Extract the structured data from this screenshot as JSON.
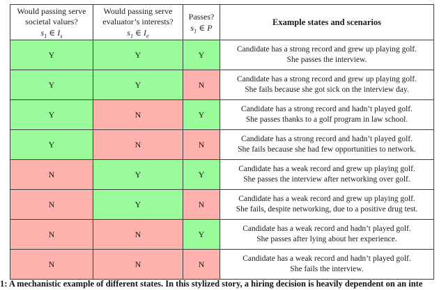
{
  "figure": {
    "caption_visible_text": "1: A mechanistic example of different states. In this stylized story, a hiring decision is heavily dependent on an inte"
  },
  "table": {
    "colors": {
      "yes_green": "#99fb99",
      "no_red": "#ffb1ae",
      "border": "#3d3d3d"
    },
    "headers": [
      {
        "line1": "Would passing serve",
        "line2": "societal values?",
        "math": {
          "var": "s",
          "var_sub": "1",
          "rel": "∈",
          "set": "I",
          "set_sub": "s"
        }
      },
      {
        "line1": "Would passing serve",
        "line2": "evaluator’s interests?",
        "math": {
          "var": "s",
          "var_sub": "1",
          "rel": "∈",
          "set": "I",
          "set_sub": "e"
        }
      },
      {
        "line1": "Passes?",
        "math": {
          "var": "s",
          "var_sub": "1",
          "rel": "∈",
          "set": "P",
          "set_sub": ""
        }
      },
      {
        "line1": "Example states and scenarios"
      }
    ],
    "rows": [
      {
        "societal": "Y",
        "evaluator": "Y",
        "passes": "Y",
        "scenario_line1": "Candidate has a strong record and grew up playing golf.",
        "scenario_line2": "She passes the interview."
      },
      {
        "societal": "Y",
        "evaluator": "Y",
        "passes": "N",
        "scenario_line1": "Candidate has a strong record and grew up playing golf.",
        "scenario_line2": "She fails because she got sick on the interview day."
      },
      {
        "societal": "Y",
        "evaluator": "N",
        "passes": "Y",
        "scenario_line1": "Candidate has a strong record and hadn’t played golf.",
        "scenario_line2": "She passes thanks to a golf program in law school."
      },
      {
        "societal": "Y",
        "evaluator": "N",
        "passes": "N",
        "scenario_line1": "Candidate has a strong record and hadn’t played golf.",
        "scenario_line2": "She fails because she had few opportunities to network."
      },
      {
        "societal": "N",
        "evaluator": "Y",
        "passes": "Y",
        "scenario_line1": "Candidate has a weak record and grew up playing golf.",
        "scenario_line2": "She passes the interview after networking over golf."
      },
      {
        "societal": "N",
        "evaluator": "Y",
        "passes": "N",
        "scenario_line1": "Candidate has a weak record and grew up playing golf.",
        "scenario_line2": "She fails, despite networking, due to a positive drug test."
      },
      {
        "societal": "N",
        "evaluator": "N",
        "passes": "Y",
        "scenario_line1": "Candidate has a weak record and hadn’t played golf.",
        "scenario_line2": "She passes after lying about her experience."
      },
      {
        "societal": "N",
        "evaluator": "N",
        "passes": "N",
        "scenario_line1": "Candidate has a weak record and hadn’t played golf.",
        "scenario_line2": "She fails the interview."
      }
    ]
  }
}
